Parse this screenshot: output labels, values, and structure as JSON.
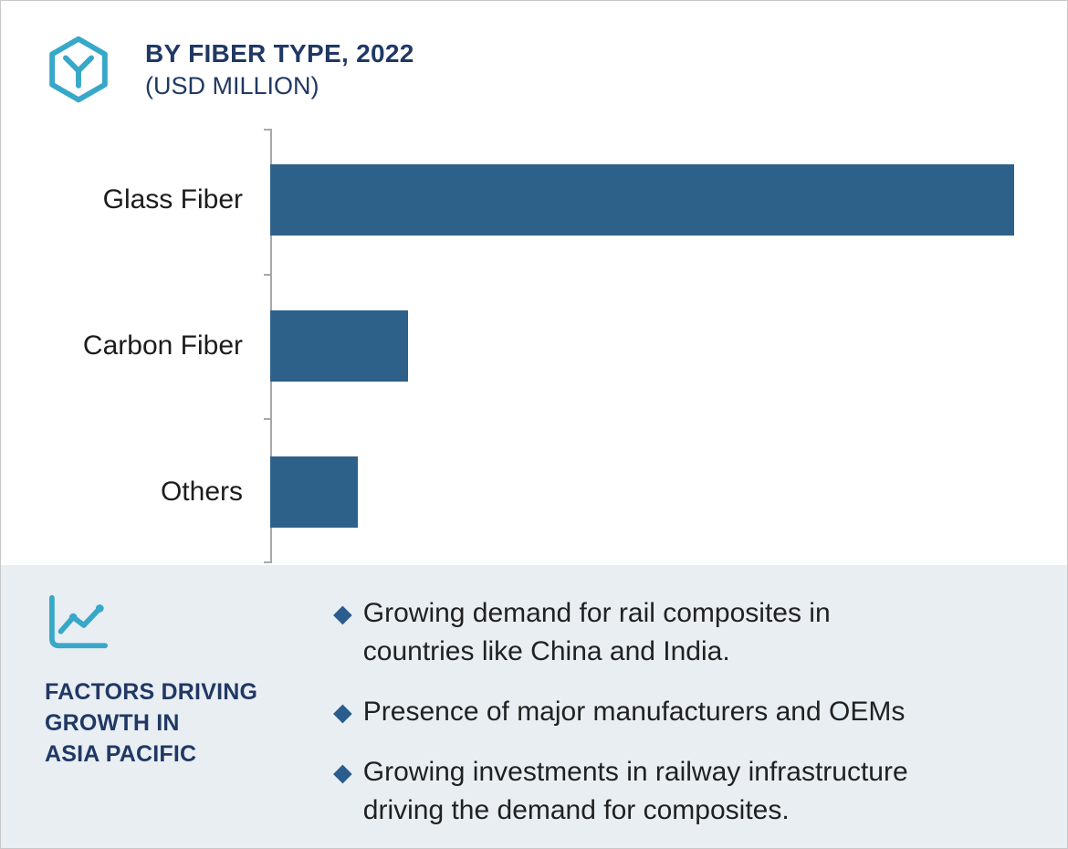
{
  "header": {
    "title": "BY FIBER TYPE, 2022",
    "subtitle": "(USD MILLION)"
  },
  "chart_data": {
    "type": "bar",
    "orientation": "horizontal",
    "title": "BY FIBER TYPE, 2022",
    "units": "USD MILLION",
    "categories": [
      "Glass Fiber",
      "Carbon Fiber",
      "Others"
    ],
    "values": [
      100,
      18.5,
      11.8
    ],
    "value_note": "relative bar lengths estimated from pixels; chart shows no numeric axis labels",
    "xlim": [
      0,
      100
    ],
    "xlabel": "",
    "ylabel": "",
    "grid": false,
    "legend": "none",
    "bar_color": "#2E6189"
  },
  "factors_panel": {
    "heading": "FACTORS DRIVING\nGROWTH IN\nASIA PACIFIC",
    "bullet_marker": "◆",
    "bullets": [
      "Growing demand for rail composites in\ncountries like China and India.",
      "Presence of major manufacturers and OEMs",
      "Growing investments in railway infrastructure\ndriving the demand for composites."
    ]
  },
  "colors": {
    "bar": "#2E6189",
    "navy_text": "#203864",
    "teal_accent": "#38A8C8",
    "panel_bg": "#E9EEF3",
    "bullet_diamond": "#2A5C8E",
    "body_text": "#212121",
    "axis_line": "#A8A8A8",
    "page_border": "#C8C8C8"
  }
}
